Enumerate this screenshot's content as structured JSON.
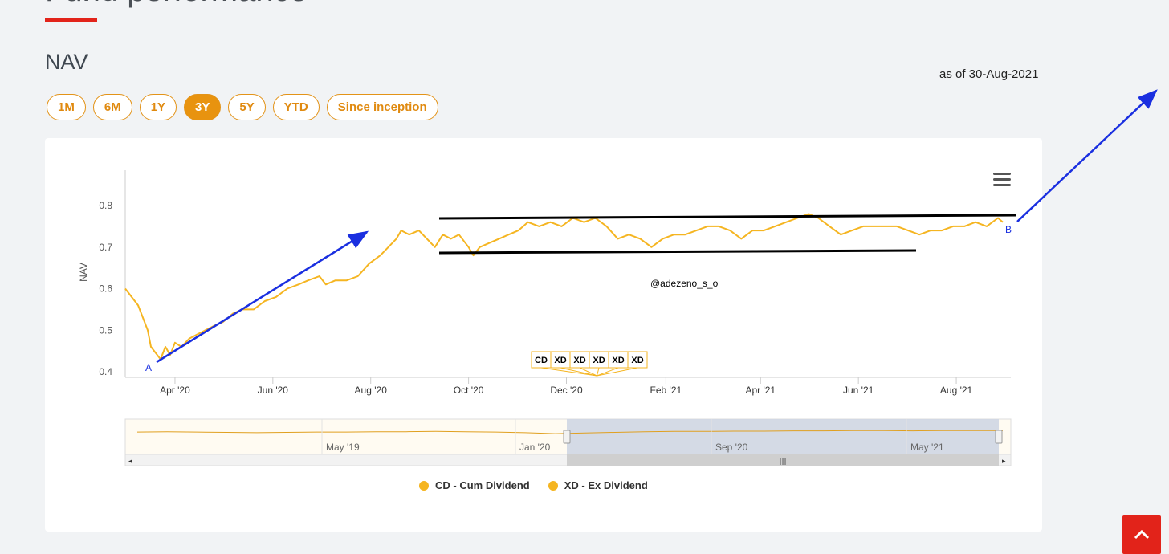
{
  "page": {
    "section_title": "Fund performance",
    "nav_heading": "NAV",
    "as_of": "as of 30-Aug-2021",
    "range_tabs": [
      {
        "label": "1M",
        "active": false
      },
      {
        "label": "6M",
        "active": false
      },
      {
        "label": "1Y",
        "active": false
      },
      {
        "label": "3Y",
        "active": true
      },
      {
        "label": "5Y",
        "active": false
      },
      {
        "label": "YTD",
        "active": false
      },
      {
        "label": "Since inception",
        "active": false
      }
    ],
    "menu_icon": "hamburger-icon",
    "scroll_top_icon": "chevron-up-icon"
  },
  "colors": {
    "accent": "#e8930f",
    "line": "#f5b521",
    "brand_red": "#e2231a",
    "annotation_blue": "#1a2fe0",
    "navigator_mask": "#ccd3e3"
  },
  "chart_data": {
    "type": "line",
    "title": "",
    "xlabel": "",
    "ylabel": "NAV",
    "ylim": [
      0.4,
      0.8
    ],
    "yticks": [
      "0.4",
      "0.5",
      "0.6",
      "0.7",
      "0.8"
    ],
    "xticks": [
      "Apr '20",
      "Jun '20",
      "Aug '20",
      "Oct '20",
      "Dec '20",
      "Feb '21",
      "Apr '21",
      "Jun '21",
      "Aug '21"
    ],
    "xlim": [
      "2020-03-01",
      "2021-09-04"
    ],
    "grid": false,
    "legend_position": "bottom",
    "series": [
      {
        "name": "CD - Cum Dividend",
        "color": "#f5b521",
        "points": [
          [
            "2020-03-01",
            0.6
          ],
          [
            "2020-03-05",
            0.58
          ],
          [
            "2020-03-09",
            0.56
          ],
          [
            "2020-03-12",
            0.53
          ],
          [
            "2020-03-15",
            0.5
          ],
          [
            "2020-03-17",
            0.46
          ],
          [
            "2020-03-19",
            0.45
          ],
          [
            "2020-03-21",
            0.44
          ],
          [
            "2020-03-23",
            0.43
          ],
          [
            "2020-03-26",
            0.46
          ],
          [
            "2020-03-29",
            0.44
          ],
          [
            "2020-04-01",
            0.47
          ],
          [
            "2020-04-05",
            0.46
          ],
          [
            "2020-04-10",
            0.48
          ],
          [
            "2020-04-15",
            0.49
          ],
          [
            "2020-04-20",
            0.5
          ],
          [
            "2020-04-25",
            0.51
          ],
          [
            "2020-05-01",
            0.52
          ],
          [
            "2020-05-07",
            0.54
          ],
          [
            "2020-05-13",
            0.55
          ],
          [
            "2020-05-20",
            0.55
          ],
          [
            "2020-05-27",
            0.57
          ],
          [
            "2020-06-03",
            0.58
          ],
          [
            "2020-06-10",
            0.6
          ],
          [
            "2020-06-17",
            0.61
          ],
          [
            "2020-06-23",
            0.62
          ],
          [
            "2020-06-30",
            0.63
          ],
          [
            "2020-07-04",
            0.61
          ],
          [
            "2020-07-10",
            0.62
          ],
          [
            "2020-07-17",
            0.62
          ],
          [
            "2020-07-24",
            0.63
          ],
          [
            "2020-07-31",
            0.66
          ],
          [
            "2020-08-07",
            0.68
          ],
          [
            "2020-08-12",
            0.7
          ],
          [
            "2020-08-17",
            0.72
          ],
          [
            "2020-08-20",
            0.74
          ],
          [
            "2020-08-25",
            0.73
          ],
          [
            "2020-08-31",
            0.74
          ],
          [
            "2020-09-05",
            0.72
          ],
          [
            "2020-09-10",
            0.7
          ],
          [
            "2020-09-15",
            0.73
          ],
          [
            "2020-09-20",
            0.72
          ],
          [
            "2020-09-25",
            0.73
          ],
          [
            "2020-10-01",
            0.7
          ],
          [
            "2020-10-04",
            0.68
          ],
          [
            "2020-10-08",
            0.7
          ],
          [
            "2020-10-14",
            0.71
          ],
          [
            "2020-10-20",
            0.72
          ],
          [
            "2020-10-26",
            0.73
          ],
          [
            "2020-11-01",
            0.74
          ],
          [
            "2020-11-07",
            0.76
          ],
          [
            "2020-11-14",
            0.75
          ],
          [
            "2020-11-21",
            0.76
          ],
          [
            "2020-11-28",
            0.75
          ],
          [
            "2020-12-05",
            0.77
          ],
          [
            "2020-12-12",
            0.76
          ],
          [
            "2020-12-19",
            0.77
          ],
          [
            "2020-12-26",
            0.75
          ],
          [
            "2021-01-02",
            0.72
          ],
          [
            "2021-01-09",
            0.73
          ],
          [
            "2021-01-16",
            0.72
          ],
          [
            "2021-01-23",
            0.7
          ],
          [
            "2021-01-30",
            0.72
          ],
          [
            "2021-02-06",
            0.73
          ],
          [
            "2021-02-13",
            0.73
          ],
          [
            "2021-02-20",
            0.74
          ],
          [
            "2021-02-27",
            0.75
          ],
          [
            "2021-03-06",
            0.75
          ],
          [
            "2021-03-13",
            0.74
          ],
          [
            "2021-03-20",
            0.72
          ],
          [
            "2021-03-27",
            0.74
          ],
          [
            "2021-04-03",
            0.74
          ],
          [
            "2021-04-10",
            0.75
          ],
          [
            "2021-04-17",
            0.76
          ],
          [
            "2021-04-24",
            0.77
          ],
          [
            "2021-05-01",
            0.78
          ],
          [
            "2021-05-07",
            0.77
          ],
          [
            "2021-05-14",
            0.75
          ],
          [
            "2021-05-21",
            0.73
          ],
          [
            "2021-05-28",
            0.74
          ],
          [
            "2021-06-04",
            0.75
          ],
          [
            "2021-06-11",
            0.75
          ],
          [
            "2021-06-18",
            0.75
          ],
          [
            "2021-06-25",
            0.75
          ],
          [
            "2021-07-02",
            0.74
          ],
          [
            "2021-07-09",
            0.73
          ],
          [
            "2021-07-16",
            0.74
          ],
          [
            "2021-07-23",
            0.74
          ],
          [
            "2021-07-30",
            0.75
          ],
          [
            "2021-08-06",
            0.75
          ],
          [
            "2021-08-13",
            0.76
          ],
          [
            "2021-08-20",
            0.75
          ],
          [
            "2021-08-27",
            0.77
          ],
          [
            "2021-08-30",
            0.76
          ]
        ]
      }
    ],
    "legend": [
      {
        "label": "CD - Cum Dividend",
        "color": "#f5b521"
      },
      {
        "label": "XD - Ex Dividend",
        "color": "#f5b521"
      }
    ],
    "flags": {
      "date": "2020-12-20",
      "labels": [
        "CD",
        "XD",
        "XD",
        "XD",
        "XD",
        "XD"
      ]
    },
    "navigator": {
      "xticks": [
        "May '19",
        "Jan '20",
        "Sep '20",
        "May '21"
      ],
      "ylim": [
        0.4,
        0.9
      ],
      "points": [
        0.75,
        0.76,
        0.75,
        0.74,
        0.73,
        0.74,
        0.75,
        0.75,
        0.76,
        0.76,
        0.77,
        0.76,
        0.75,
        0.73,
        0.7,
        0.72,
        0.74,
        0.76,
        0.77,
        0.77,
        0.78,
        0.78,
        0.79,
        0.79,
        0.8,
        0.8,
        0.79,
        0.8,
        0.8,
        0.8
      ],
      "selected": "3Y"
    },
    "annotations": {
      "watermark": "@adezeno_s_o",
      "point_a": "A",
      "point_b": "B"
    }
  }
}
